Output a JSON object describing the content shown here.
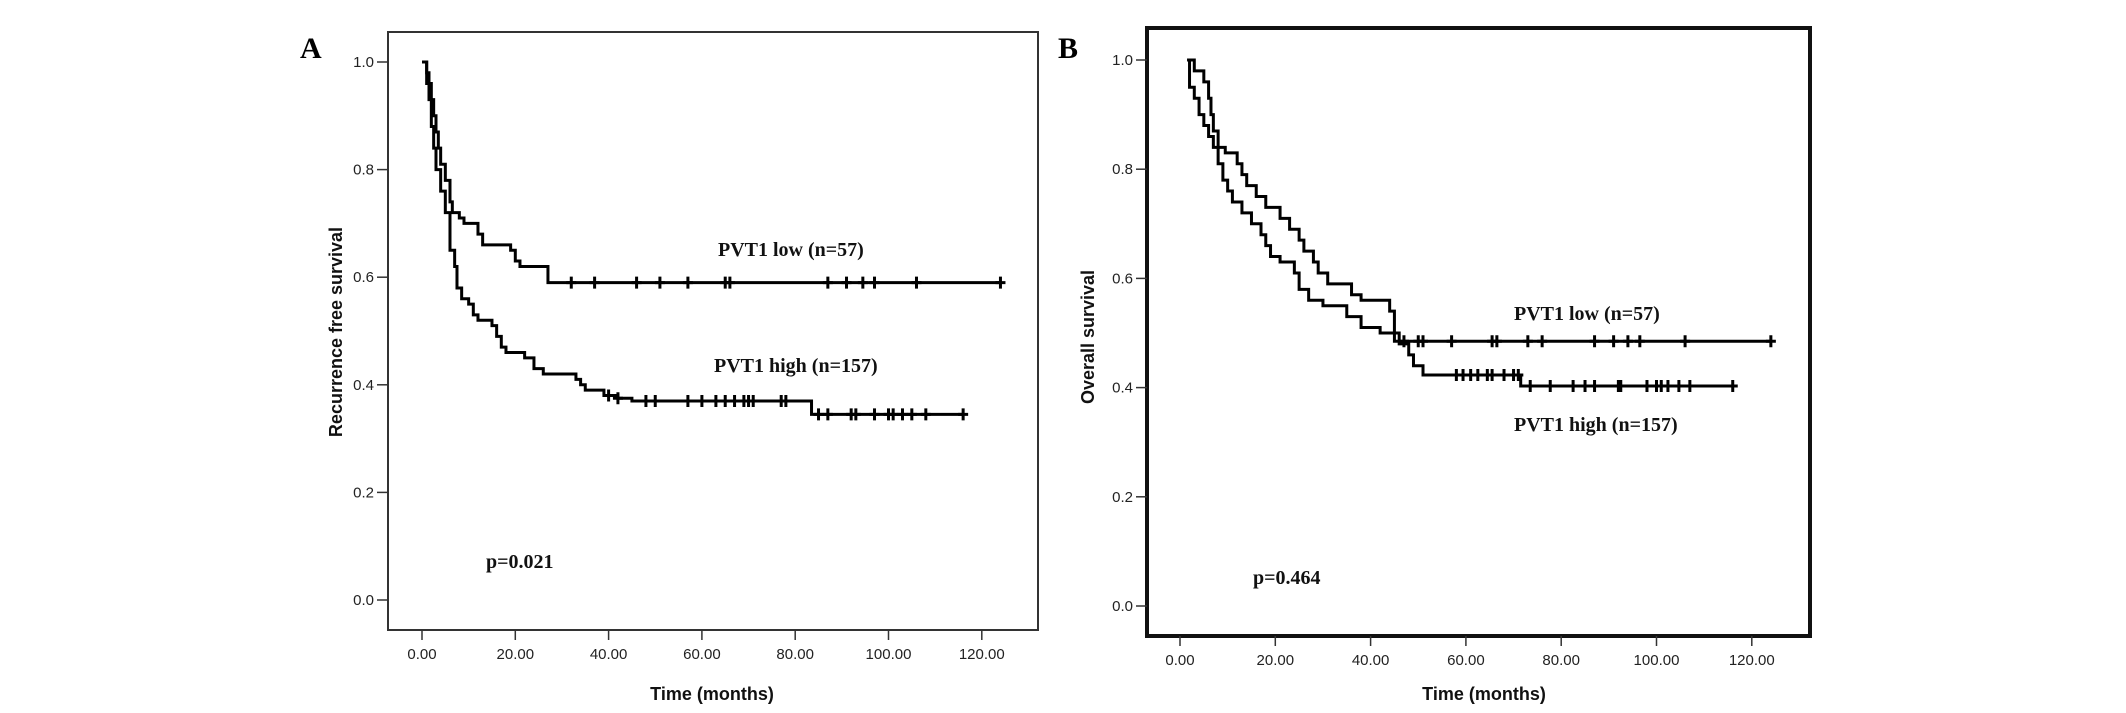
{
  "chart_data": [
    {
      "type": "line",
      "panel_label": "A",
      "title": "",
      "xlabel": "Time (months)",
      "ylabel": "Recurrence free survival",
      "xlim": [
        -7,
        133
      ],
      "ylim": [
        -0.05,
        1.07
      ],
      "x_ticks": [
        "0.00",
        "20.00",
        "40.00",
        "60.00",
        "80.00",
        "100.00",
        "120.00"
      ],
      "x_tick_values": [
        0,
        20,
        40,
        60,
        80,
        100,
        120
      ],
      "y_ticks": [
        "0.0",
        "0.2",
        "0.4",
        "0.6",
        "0.8",
        "1.0"
      ],
      "y_tick_values": [
        0,
        0.2,
        0.4,
        0.6,
        0.8,
        1.0
      ],
      "grid": false,
      "p_value_text": "p=0.021",
      "series": [
        {
          "name": "PVT1 low (n=57)",
          "steps": [
            [
              0,
              1.0
            ],
            [
              1,
              0.98
            ],
            [
              1.5,
              0.96
            ],
            [
              2,
              0.93
            ],
            [
              2.5,
              0.9
            ],
            [
              3,
              0.87
            ],
            [
              3.5,
              0.84
            ],
            [
              4,
              0.81
            ],
            [
              5,
              0.78
            ],
            [
              6,
              0.74
            ],
            [
              6.5,
              0.72
            ],
            [
              8,
              0.71
            ],
            [
              9,
              0.7
            ],
            [
              12,
              0.68
            ],
            [
              13,
              0.66
            ],
            [
              19,
              0.65
            ],
            [
              20,
              0.63
            ],
            [
              21,
              0.62
            ],
            [
              27,
              0.59
            ],
            [
              124,
              0.59
            ]
          ],
          "censored": [
            32,
            37,
            46,
            51,
            57,
            65,
            66,
            87,
            91,
            94.5,
            97,
            106,
            124
          ]
        },
        {
          "name": "PVT1 high (n=157)",
          "steps": [
            [
              0,
              1.0
            ],
            [
              1,
              0.96
            ],
            [
              1.5,
              0.93
            ],
            [
              2,
              0.88
            ],
            [
              2.5,
              0.84
            ],
            [
              3,
              0.8
            ],
            [
              4,
              0.76
            ],
            [
              5,
              0.72
            ],
            [
              6,
              0.65
            ],
            [
              7,
              0.62
            ],
            [
              7.5,
              0.58
            ],
            [
              8.5,
              0.56
            ],
            [
              10,
              0.55
            ],
            [
              11,
              0.53
            ],
            [
              12,
              0.52
            ],
            [
              15,
              0.51
            ],
            [
              16,
              0.49
            ],
            [
              17,
              0.47
            ],
            [
              18,
              0.46
            ],
            [
              22,
              0.45
            ],
            [
              24,
              0.43
            ],
            [
              26,
              0.42
            ],
            [
              33,
              0.41
            ],
            [
              34,
              0.4
            ],
            [
              35,
              0.39
            ],
            [
              39,
              0.38
            ],
            [
              42,
              0.375
            ],
            [
              45,
              0.37
            ],
            [
              83,
              0.37
            ],
            [
              83.5,
              0.345
            ],
            [
              116,
              0.345
            ]
          ],
          "censored": [
            40,
            42,
            48,
            50,
            57,
            60,
            63,
            65,
            67,
            69,
            70,
            71,
            77,
            78,
            85,
            87,
            92,
            93,
            97,
            100,
            101,
            103,
            105,
            108,
            116
          ]
        }
      ]
    },
    {
      "type": "line",
      "panel_label": "B",
      "title": "",
      "xlabel": "Time (months)",
      "ylabel": "Overall survival",
      "xlim": [
        -7,
        133
      ],
      "ylim": [
        -0.05,
        1.07
      ],
      "x_ticks": [
        "0.00",
        "20.00",
        "40.00",
        "60.00",
        "80.00",
        "100.00",
        "120.00"
      ],
      "x_tick_values": [
        0,
        20,
        40,
        60,
        80,
        100,
        120
      ],
      "y_ticks": [
        "0.0",
        "0.2",
        "0.4",
        "0.6",
        "0.8",
        "1.0"
      ],
      "y_tick_values": [
        0,
        0.2,
        0.4,
        0.6,
        0.8,
        1.0
      ],
      "grid": false,
      "p_value_text": "p=0.464",
      "series": [
        {
          "name": "PVT1 low (n=57)",
          "steps": [
            [
              1.5,
              1.0
            ],
            [
              3,
              0.98
            ],
            [
              5,
              0.96
            ],
            [
              6,
              0.93
            ],
            [
              6.5,
              0.9
            ],
            [
              7,
              0.87
            ],
            [
              8,
              0.84
            ],
            [
              9.5,
              0.83
            ],
            [
              12,
              0.81
            ],
            [
              13,
              0.79
            ],
            [
              14,
              0.77
            ],
            [
              16,
              0.75
            ],
            [
              18,
              0.73
            ],
            [
              21,
              0.71
            ],
            [
              23,
              0.69
            ],
            [
              25,
              0.67
            ],
            [
              26,
              0.65
            ],
            [
              28,
              0.63
            ],
            [
              29,
              0.61
            ],
            [
              31,
              0.59
            ],
            [
              36,
              0.57
            ],
            [
              38,
              0.56
            ],
            [
              44,
              0.54
            ],
            [
              45,
              0.485
            ],
            [
              124,
              0.485
            ]
          ],
          "censored": [
            47,
            50,
            51,
            57,
            65.5,
            66.5,
            73,
            76,
            87,
            91,
            94,
            96.5,
            106,
            124
          ]
        },
        {
          "name": "PVT1 high (n=157)",
          "steps": [
            [
              1.5,
              1.0
            ],
            [
              2,
              0.95
            ],
            [
              3,
              0.93
            ],
            [
              4,
              0.9
            ],
            [
              5,
              0.88
            ],
            [
              6,
              0.86
            ],
            [
              7,
              0.84
            ],
            [
              8,
              0.81
            ],
            [
              9,
              0.78
            ],
            [
              10,
              0.76
            ],
            [
              11,
              0.74
            ],
            [
              13,
              0.72
            ],
            [
              15,
              0.7
            ],
            [
              17,
              0.68
            ],
            [
              18,
              0.66
            ],
            [
              19,
              0.64
            ],
            [
              21,
              0.63
            ],
            [
              24,
              0.61
            ],
            [
              25,
              0.58
            ],
            [
              27,
              0.56
            ],
            [
              30,
              0.55
            ],
            [
              35,
              0.53
            ],
            [
              38,
              0.51
            ],
            [
              42,
              0.5
            ],
            [
              46,
              0.48
            ],
            [
              48,
              0.46
            ],
            [
              49,
              0.44
            ],
            [
              51,
              0.423
            ],
            [
              71,
              0.423
            ],
            [
              71.5,
              0.403
            ],
            [
              116,
              0.403
            ]
          ],
          "censored": [
            58,
            59.4,
            61,
            62.5,
            64.5,
            65.5,
            68,
            70,
            71,
            73.5,
            77.7,
            82.5,
            85,
            87,
            92,
            92.5,
            98,
            100,
            101,
            102.4,
            104.7,
            107,
            116
          ]
        }
      ]
    }
  ]
}
